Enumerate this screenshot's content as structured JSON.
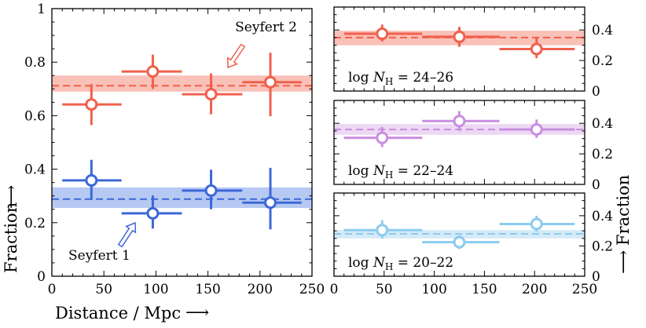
{
  "chart_data": [
    {
      "panel": "left",
      "type": "scatter",
      "title": "",
      "xlabel": "Distance / Mpc",
      "ylabel": "Fraction",
      "xlim": [
        0,
        250
      ],
      "ylim": [
        0,
        1
      ],
      "xticks": [
        "0",
        "50",
        "100",
        "150",
        "200",
        "250"
      ],
      "yticks": [
        "0",
        "0.2",
        "0.4",
        "0.6",
        "0.8",
        "1"
      ],
      "grid": false,
      "series": [
        {
          "name": "Seyfert 2",
          "color": "#f0604d",
          "band_color": "#f8b6aa",
          "mean": 0.712,
          "band": [
            0.69,
            0.75
          ],
          "points": [
            {
              "x": 38,
              "xerr": [
                10,
                67
              ],
              "y": 0.642,
              "yerr": [
                0.565,
                0.718
              ]
            },
            {
              "x": 97,
              "xerr": [
                67,
                125
              ],
              "y": 0.765,
              "yerr": [
                0.7,
                0.828
              ]
            },
            {
              "x": 153,
              "xerr": [
                125,
                183
              ],
              "y": 0.68,
              "yerr": [
                0.605,
                0.758
              ]
            },
            {
              "x": 210,
              "xerr": [
                183,
                240
              ],
              "y": 0.725,
              "yerr": [
                0.598,
                0.835
              ]
            }
          ]
        },
        {
          "name": "Seyfert 1",
          "color": "#3d68d8",
          "band_color": "#a9bff1",
          "mean": 0.288,
          "band": [
            0.255,
            0.332
          ],
          "points": [
            {
              "x": 38,
              "xerr": [
                10,
                67
              ],
              "y": 0.358,
              "yerr": [
                0.285,
                0.435
              ]
            },
            {
              "x": 97,
              "xerr": [
                67,
                125
              ],
              "y": 0.235,
              "yerr": [
                0.178,
                0.302
              ]
            },
            {
              "x": 153,
              "xerr": [
                125,
                183
              ],
              "y": 0.32,
              "yerr": [
                0.25,
                0.398
              ]
            },
            {
              "x": 210,
              "xerr": [
                183,
                240
              ],
              "y": 0.275,
              "yerr": [
                0.175,
                0.405
              ]
            }
          ]
        }
      ],
      "annotations": [
        {
          "text": "Seyfert 2",
          "series": "Seyfert 2"
        },
        {
          "text": "Seyfert 1",
          "series": "Seyfert 1"
        }
      ]
    },
    {
      "panel": "right-top",
      "type": "scatter",
      "label": {
        "base": "log ",
        "var": "N",
        "sub": "H",
        "rest": " = 24–26"
      },
      "xlim": [
        0,
        250
      ],
      "ylim": [
        0,
        0.55
      ],
      "xticks": [
        "0",
        "50",
        "100",
        "150",
        "200",
        "250"
      ],
      "yticks": [
        "0",
        "0.2",
        "0.4"
      ],
      "color": "#f0604d",
      "band_color": "#f8b6aa",
      "mean": 0.35,
      "band": [
        0.3,
        0.395
      ],
      "points": [
        {
          "x": 48,
          "xerr": [
            10,
            88
          ],
          "y": 0.375,
          "yerr": [
            0.325,
            0.435
          ]
        },
        {
          "x": 125,
          "xerr": [
            88,
            165
          ],
          "y": 0.355,
          "yerr": [
            0.29,
            0.42
          ]
        },
        {
          "x": 202,
          "xerr": [
            165,
            240
          ],
          "y": 0.275,
          "yerr": [
            0.215,
            0.355
          ]
        }
      ]
    },
    {
      "panel": "right-middle",
      "type": "scatter",
      "label": {
        "base": "log ",
        "var": "N",
        "sub": "H",
        "rest": " = 22–24"
      },
      "xlim": [
        0,
        250
      ],
      "ylim": [
        0,
        0.55
      ],
      "xticks": [
        "0",
        "50",
        "100",
        "150",
        "200",
        "250"
      ],
      "yticks": [
        "0",
        "0.2",
        "0.4"
      ],
      "color": "#c98ee0",
      "band_color": "#ead1f1",
      "mean": 0.36,
      "band": [
        0.325,
        0.395
      ],
      "points": [
        {
          "x": 48,
          "xerr": [
            10,
            88
          ],
          "y": 0.305,
          "yerr": [
            0.245,
            0.375
          ]
        },
        {
          "x": 125,
          "xerr": [
            88,
            165
          ],
          "y": 0.415,
          "yerr": [
            0.35,
            0.48
          ]
        },
        {
          "x": 202,
          "xerr": [
            165,
            240
          ],
          "y": 0.36,
          "yerr": [
            0.305,
            0.425
          ]
        }
      ]
    },
    {
      "panel": "right-bottom",
      "type": "scatter",
      "label": {
        "base": "log ",
        "var": "N",
        "sub": "H",
        "rest": " = 20–22"
      },
      "xlim": [
        0,
        250
      ],
      "ylim": [
        0,
        0.55
      ],
      "xticks": [
        "0",
        "50",
        "100",
        "150",
        "200",
        "250"
      ],
      "yticks": [
        "0",
        "0.2",
        "0.4"
      ],
      "ylabel": "Fraction",
      "xlabel_shared": "Distance / Mpc",
      "color": "#8ccbf0",
      "band_color": "#cde6f6",
      "mean": 0.28,
      "band": [
        0.25,
        0.305
      ],
      "points": [
        {
          "x": 48,
          "xerr": [
            10,
            88
          ],
          "y": 0.305,
          "yerr": [
            0.25,
            0.37
          ]
        },
        {
          "x": 125,
          "xerr": [
            88,
            165
          ],
          "y": 0.225,
          "yerr": [
            0.18,
            0.27
          ]
        },
        {
          "x": 202,
          "xerr": [
            165,
            240
          ],
          "y": 0.345,
          "yerr": [
            0.295,
            0.4
          ]
        }
      ]
    }
  ],
  "labels": {
    "left_ylabel": "Fraction",
    "right_ylabel": "Fraction",
    "xlabel": "Distance / Mpc",
    "arrow_up": "⟶",
    "arrow_right": "⟶"
  }
}
